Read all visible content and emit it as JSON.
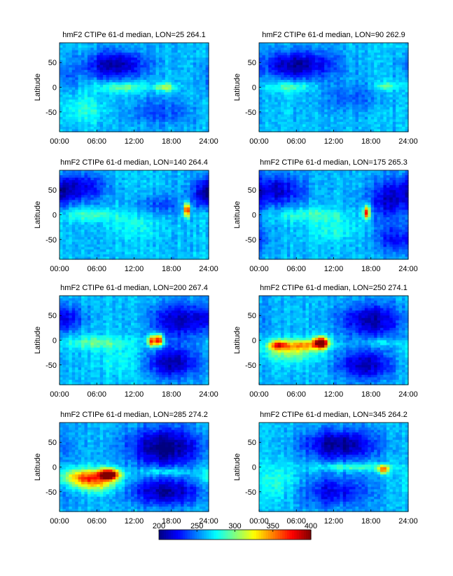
{
  "chart_data": [
    {
      "type": "heatmap",
      "title": "hmF2  CTIPe 61-d median, LON=25 264.1",
      "ylabel": "Latitude",
      "xlim": [
        0,
        24
      ],
      "ylim": [
        -90,
        90
      ],
      "xticks": [
        "00:00",
        "06:00",
        "12:00",
        "18:00",
        "24:00"
      ],
      "yticks": [
        50,
        0,
        -50
      ],
      "base": 262,
      "features": [
        {
          "kind": "blob",
          "t": 9.0,
          "lat": 45,
          "st": 3.5,
          "sl": 20,
          "amp": -55
        },
        {
          "kind": "blob",
          "t": 10.0,
          "lat": 0,
          "st": 3.0,
          "sl": 7,
          "amp": 35
        },
        {
          "kind": "blob",
          "t": 17.0,
          "lat": 0,
          "st": 1.2,
          "sl": 6,
          "amp": 45
        },
        {
          "kind": "blob",
          "t": 4.0,
          "lat": -45,
          "st": 3.0,
          "sl": 20,
          "amp": 18
        },
        {
          "kind": "blob",
          "t": 16.0,
          "lat": -50,
          "st": 4.0,
          "sl": 20,
          "amp": -22
        },
        {
          "kind": "blob",
          "t": 1.0,
          "lat": 20,
          "st": 2.0,
          "sl": 20,
          "amp": -15
        }
      ]
    },
    {
      "type": "heatmap",
      "title": "hmF2  CTIPe 61-d median, LON=90 262.9",
      "ylabel": "Latitude",
      "xlim": [
        0,
        24
      ],
      "ylim": [
        -90,
        90
      ],
      "xticks": [
        "00:00",
        "06:00",
        "12:00",
        "18:00",
        "24:00"
      ],
      "yticks": [
        50,
        0,
        -50
      ],
      "base": 262,
      "features": [
        {
          "kind": "blob",
          "t": 5.5,
          "lat": 45,
          "st": 3.5,
          "sl": 20,
          "amp": -55
        },
        {
          "kind": "blob",
          "t": 5.0,
          "lat": 0,
          "st": 2.5,
          "sl": 7,
          "amp": 32
        },
        {
          "kind": "blob",
          "t": 20.5,
          "lat": 2,
          "st": 1.3,
          "sl": 6,
          "amp": 32
        },
        {
          "kind": "blob",
          "t": 15.0,
          "lat": -20,
          "st": 3.5,
          "sl": 20,
          "amp": -18
        },
        {
          "kind": "blob",
          "t": 11.0,
          "lat": 45,
          "st": 3.0,
          "sl": 20,
          "amp": -12
        }
      ]
    },
    {
      "type": "heatmap",
      "title": "hmF2  CTIPe 61-d median, LON=140 264.4",
      "ylabel": "Latitude",
      "xlim": [
        0,
        24
      ],
      "ylim": [
        -90,
        90
      ],
      "xticks": [
        "00:00",
        "06:00",
        "12:00",
        "18:00",
        "24:00"
      ],
      "yticks": [
        50,
        0,
        -50
      ],
      "base": 262,
      "features": [
        {
          "kind": "blob",
          "t": 3.0,
          "lat": 55,
          "st": 3.0,
          "sl": 20,
          "amp": -45
        },
        {
          "kind": "blob",
          "t": 5.0,
          "lat": 0,
          "st": 3.0,
          "sl": 9,
          "amp": 30
        },
        {
          "kind": "blob",
          "t": 20.5,
          "lat": 10,
          "st": 0.35,
          "sl": 10,
          "amp": 125
        },
        {
          "kind": "blob",
          "t": 23.5,
          "lat": 40,
          "st": 1.5,
          "sl": 20,
          "amp": -40
        },
        {
          "kind": "blob",
          "t": 16.0,
          "lat": 20,
          "st": 3.0,
          "sl": 15,
          "amp": -22
        },
        {
          "kind": "blob",
          "t": 12.0,
          "lat": -20,
          "st": 3.0,
          "sl": 18,
          "amp": 15
        }
      ]
    },
    {
      "type": "heatmap",
      "title": "hmF2  CTIPe 61-d median, LON=175 265.3",
      "ylabel": "Latitude",
      "xlim": [
        0,
        24
      ],
      "ylim": [
        -90,
        90
      ],
      "xticks": [
        "00:00",
        "06:00",
        "12:00",
        "18:00",
        "24:00"
      ],
      "yticks": [
        50,
        0,
        -50
      ],
      "base": 262,
      "features": [
        {
          "kind": "blob",
          "t": 3.0,
          "lat": 50,
          "st": 3.0,
          "sl": 22,
          "amp": -45
        },
        {
          "kind": "blob",
          "t": 17.3,
          "lat": 5,
          "st": 0.35,
          "sl": 10,
          "amp": 125
        },
        {
          "kind": "blob",
          "t": 21.0,
          "lat": 30,
          "st": 2.5,
          "sl": 30,
          "amp": -45
        },
        {
          "kind": "blob",
          "t": 8.0,
          "lat": 0,
          "st": 4.0,
          "sl": 10,
          "amp": 25
        },
        {
          "kind": "blob",
          "t": 12.0,
          "lat": -30,
          "st": 3.0,
          "sl": 18,
          "amp": 18
        },
        {
          "kind": "blob",
          "t": 22.0,
          "lat": -50,
          "st": 2.5,
          "sl": 20,
          "amp": -35
        }
      ]
    },
    {
      "type": "heatmap",
      "title": "hmF2  CTIPe 61-d median, LON=200 267.4",
      "ylabel": "Latitude",
      "xlim": [
        0,
        24
      ],
      "ylim": [
        -90,
        90
      ],
      "xticks": [
        "00:00",
        "06:00",
        "12:00",
        "18:00",
        "24:00"
      ],
      "yticks": [
        50,
        0,
        -50
      ],
      "base": 262,
      "features": [
        {
          "kind": "blob",
          "t": 16.0,
          "lat": 0,
          "st": 0.5,
          "sl": 8,
          "amp": 135
        },
        {
          "kind": "blob",
          "t": 14.8,
          "lat": -2,
          "st": 0.4,
          "sl": 8,
          "amp": 110
        },
        {
          "kind": "blob",
          "t": 19.0,
          "lat": 40,
          "st": 3.0,
          "sl": 25,
          "amp": -50
        },
        {
          "kind": "blob",
          "t": 18.0,
          "lat": -45,
          "st": 3.0,
          "sl": 22,
          "amp": -55
        },
        {
          "kind": "blob",
          "t": 6.0,
          "lat": -5,
          "st": 3.5,
          "sl": 10,
          "amp": 32
        },
        {
          "kind": "blob",
          "t": 1.0,
          "lat": 45,
          "st": 2.0,
          "sl": 20,
          "amp": -35
        },
        {
          "kind": "blob",
          "t": 10.0,
          "lat": -40,
          "st": 3.0,
          "sl": 20,
          "amp": 15
        }
      ]
    },
    {
      "type": "heatmap",
      "title": "hmF2  CTIPe 61-d median, LON=250 274.1",
      "ylabel": "Latitude",
      "xlim": [
        0,
        24
      ],
      "ylim": [
        -90,
        90
      ],
      "xticks": [
        "00:00",
        "06:00",
        "12:00",
        "18:00",
        "24:00"
      ],
      "yticks": [
        50,
        0,
        -50
      ],
      "base": 262,
      "features": [
        {
          "kind": "blob",
          "t": 10.0,
          "lat": -5,
          "st": 0.8,
          "sl": 8,
          "amp": 150
        },
        {
          "kind": "blob",
          "t": 7.0,
          "lat": -10,
          "st": 2.5,
          "sl": 8,
          "amp": 70
        },
        {
          "kind": "blob",
          "t": 3.0,
          "lat": -10,
          "st": 1.0,
          "sl": 7,
          "amp": 85
        },
        {
          "kind": "blob",
          "t": 5.0,
          "lat": -25,
          "st": 3.0,
          "sl": 15,
          "amp": 40
        },
        {
          "kind": "blob",
          "t": 18.0,
          "lat": 40,
          "st": 3.5,
          "sl": 25,
          "amp": -55
        },
        {
          "kind": "blob",
          "t": 17.0,
          "lat": -50,
          "st": 3.0,
          "sl": 22,
          "amp": -55
        },
        {
          "kind": "blob",
          "t": 19.5,
          "lat": -5,
          "st": 2.0,
          "sl": 6,
          "amp": 20
        }
      ]
    },
    {
      "type": "heatmap",
      "title": "hmF2  CTIPe 61-d median, LON=285 274.2",
      "ylabel": "Latitude",
      "xlim": [
        0,
        24
      ],
      "ylim": [
        -90,
        90
      ],
      "xticks": [
        "00:00",
        "06:00",
        "12:00",
        "18:00",
        "24:00"
      ],
      "yticks": [
        50,
        0,
        -50
      ],
      "base": 262,
      "features": [
        {
          "kind": "blob",
          "t": 8.0,
          "lat": -15,
          "st": 1.2,
          "sl": 8,
          "amp": 150
        },
        {
          "kind": "blob",
          "t": 4.0,
          "lat": -20,
          "st": 2.5,
          "sl": 12,
          "amp": 85
        },
        {
          "kind": "blob",
          "t": 6.0,
          "lat": -35,
          "st": 2.5,
          "sl": 12,
          "amp": 50
        },
        {
          "kind": "blob",
          "t": 17.0,
          "lat": 40,
          "st": 4.0,
          "sl": 28,
          "amp": -65
        },
        {
          "kind": "blob",
          "t": 17.0,
          "lat": -50,
          "st": 4.0,
          "sl": 20,
          "amp": -55
        },
        {
          "kind": "blob",
          "t": 17.0,
          "lat": -10,
          "st": 3.0,
          "sl": 6,
          "amp": 30
        }
      ]
    },
    {
      "type": "heatmap",
      "title": "hmF2  CTIPe 61-d median, LON=345 264.2",
      "ylabel": "Latitude",
      "xlim": [
        0,
        24
      ],
      "ylim": [
        -90,
        90
      ],
      "xticks": [
        "00:00",
        "06:00",
        "12:00",
        "18:00",
        "24:00"
      ],
      "yticks": [
        50,
        0,
        -50
      ],
      "base": 262,
      "features": [
        {
          "kind": "blob",
          "t": 13.0,
          "lat": 45,
          "st": 4.0,
          "sl": 22,
          "amp": -60
        },
        {
          "kind": "blob",
          "t": 20.0,
          "lat": -5,
          "st": 0.6,
          "sl": 6,
          "amp": 95
        },
        {
          "kind": "blob",
          "t": 15.0,
          "lat": 0,
          "st": 4.0,
          "sl": 6,
          "amp": 35
        },
        {
          "kind": "blob",
          "t": 12.0,
          "lat": -50,
          "st": 4.0,
          "sl": 22,
          "amp": -40
        },
        {
          "kind": "blob",
          "t": 3.0,
          "lat": -30,
          "st": 2.5,
          "sl": 25,
          "amp": 20
        }
      ]
    }
  ],
  "colorbar": {
    "range": [
      200,
      400
    ],
    "ticks": [
      "200",
      "250",
      "300",
      "350",
      "400"
    ],
    "colormap": "jet"
  }
}
